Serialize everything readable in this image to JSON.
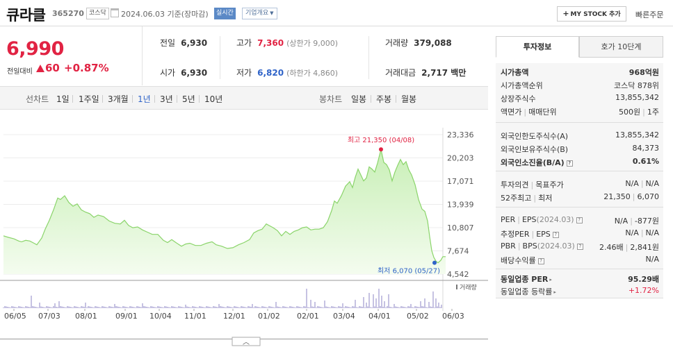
{
  "header": {
    "title": "큐라클",
    "code": "365270",
    "market": "코스닥",
    "date": "2024.06.03  기준(장마감)",
    "realtime": "실시간",
    "company": "기업개요",
    "mystock_plus": "+",
    "mystock": "MY STOCK 추가",
    "quick_order": "빠른주문"
  },
  "price": {
    "current": "6,990",
    "compare_label": "전일대비",
    "change": "60",
    "change_pct": "+0.87%"
  },
  "stats": {
    "prev_label": "전일",
    "prev": "6,930",
    "high_label": "고가",
    "high": "7,360",
    "upper_limit": "(상한가 9,000)",
    "volume_label": "거래량",
    "volume": "379,088",
    "open_label": "시가",
    "open": "6,930",
    "low_label": "저가",
    "low": "6,820",
    "lower_limit": "(하한가 4,860)",
    "amount_label": "거래대금",
    "amount": "2,717 백만"
  },
  "tabs": {
    "line_chart": "선차트",
    "periods": [
      "1일",
      "1주일",
      "3개월",
      "1년",
      "3년",
      "5년",
      "10년"
    ],
    "selected": "1년",
    "candle_chart": "봉차트",
    "candle_periods": [
      "일봉",
      "주봉",
      "월봉"
    ]
  },
  "chart_data": {
    "type": "area",
    "y_ticks": [
      23336,
      20203,
      17071,
      13939,
      10807,
      7674,
      4542
    ],
    "y_tick_labels": [
      "23,336",
      "20,203",
      "17,071",
      "13,939",
      "10,807",
      "7,674",
      "4,542"
    ],
    "ylim": [
      4542,
      23336
    ],
    "x_tick_labels": [
      "06/05",
      "07/03",
      "08/01",
      "09/01",
      "10/04",
      "11/01",
      "12/01",
      "01/02",
      "02/01",
      "03/04",
      "04/01",
      "05/02",
      "06/03"
    ],
    "high_annotation": "최고 21,350 (04/08)",
    "low_annotation": "최저 6,070 (05/27)",
    "high_value": 21350,
    "low_value": 6070,
    "volume_label": "거래량",
    "colors": {
      "line": "#8ad46a",
      "fill_top": "#c8efb6",
      "fill_bottom": "#f4fcef",
      "high": "#e12343",
      "low": "#2f63c8",
      "volume": "#8e86c4"
    }
  },
  "right_panel": {
    "tab_selected": "투자정보",
    "tab_other": "호가 10단계",
    "section1": [
      {
        "label": "시가총액",
        "value": "968억원"
      },
      {
        "label": "시가총액순위",
        "value": "코스닥 878위"
      },
      {
        "label": "상장주식수",
        "value": "13,855,342"
      },
      {
        "label": "액면가",
        "label2": "매매단위",
        "value": "500원",
        "value2": "1주"
      }
    ],
    "section2": [
      {
        "label": "외국인한도주식수(A)",
        "value": "13,855,342"
      },
      {
        "label": "외국인보유주식수(B)",
        "value": "84,373"
      },
      {
        "label": "외국인소진율(B/A)",
        "value": "0.61%",
        "help": "?"
      }
    ],
    "section3": [
      {
        "label": "투자의견",
        "label2": "목표주가",
        "value": "N/A",
        "value2": "N/A"
      },
      {
        "label": "52주최고",
        "label2": "최저",
        "value": "21,350",
        "value2": "6,070"
      }
    ],
    "section4": [
      {
        "label": "PER",
        "label2": "EPS",
        "label2_note": "(2024.03)",
        "value": "N/A",
        "value2": "-877원",
        "help": "?"
      },
      {
        "label": "추정PER",
        "label2": "EPS",
        "value": "N/A",
        "value2": "N/A",
        "help": "?"
      },
      {
        "label": "PBR",
        "label2": "BPS",
        "label2_note": "(2024.03)",
        "value": "2.46배",
        "value2": "2,841원",
        "help": "?"
      },
      {
        "label": "배당수익률",
        "value": "N/A",
        "help": "?"
      }
    ],
    "section5": [
      {
        "label": "동일업종 PER",
        "value": "95.29배",
        "arrow": "▸"
      },
      {
        "label": "동일업종 등락률",
        "value": "+1.72%",
        "arrow": "▸"
      }
    ]
  },
  "collapse_toggle": "︿"
}
